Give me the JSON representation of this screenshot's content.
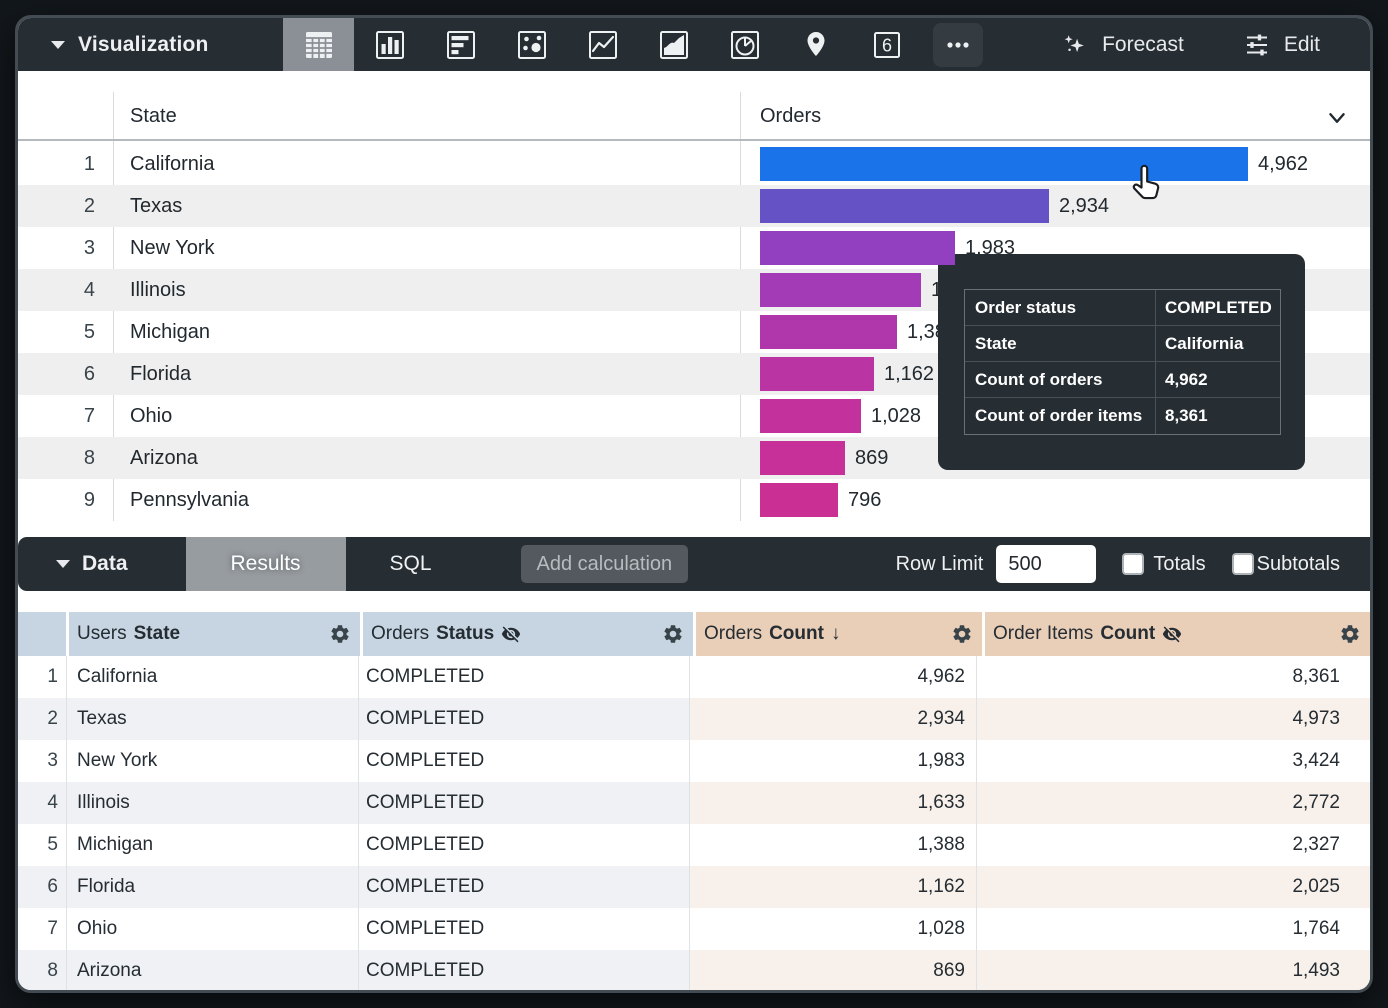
{
  "toolbar": {
    "title": "Visualization",
    "icons": [
      "table",
      "column-chart",
      "bar-chart",
      "scatter",
      "line-chart",
      "area-chart",
      "pie-chart",
      "map-pin",
      "single-value",
      "more"
    ],
    "selected_icon": "table",
    "single_value_glyph": "6",
    "forecast_label": "Forecast",
    "edit_label": "Edit"
  },
  "viz": {
    "state_header": "State",
    "orders_header": "Orders",
    "max_value": 4962,
    "rows": [
      {
        "n": "1",
        "state": "California",
        "value": 4962,
        "label": "4,962",
        "color": "#1a73e8"
      },
      {
        "n": "2",
        "state": "Texas",
        "value": 2934,
        "label": "2,934",
        "color": "#6553c6"
      },
      {
        "n": "3",
        "state": "New York",
        "value": 1983,
        "label": "1,983",
        "color": "#9240bf"
      },
      {
        "n": "4",
        "state": "Illinois",
        "value": 1633,
        "label": "1,633",
        "color": "#a43bb6"
      },
      {
        "n": "5",
        "state": "Michigan",
        "value": 1388,
        "label": "1,388",
        "color": "#b037ab"
      },
      {
        "n": "6",
        "state": "Florida",
        "value": 1162,
        "label": "1,162",
        "color": "#ba34a4"
      },
      {
        "n": "7",
        "state": "Ohio",
        "value": 1028,
        "label": "1,028",
        "color": "#c2319c"
      },
      {
        "n": "8",
        "state": "Arizona",
        "value": 869,
        "label": "869",
        "color": "#c63098"
      },
      {
        "n": "9",
        "state": "Pennsylvania",
        "value": 796,
        "label": "796",
        "color": "#ca2f93"
      }
    ]
  },
  "tooltip": {
    "rows": [
      {
        "label": "Order status",
        "value": "COMPLETED"
      },
      {
        "label": "State",
        "value": "California"
      },
      {
        "label": "Count of orders",
        "value": "4,962"
      },
      {
        "label": "Count of order items",
        "value": "8,361"
      }
    ]
  },
  "data_bar": {
    "title": "Data",
    "results_tab": "Results",
    "sql_tab": "SQL",
    "add_calculation_label": "Add calculation",
    "row_limit_label": "Row Limit",
    "row_limit_value": "500",
    "totals_label": "Totals",
    "subtotals_label": "Subtotals",
    "totals_checked": false,
    "subtotals_checked": false
  },
  "data_table": {
    "headers": [
      {
        "prefix": "Users",
        "bold": "State"
      },
      {
        "prefix": "Orders",
        "bold": "Status",
        "hidden": true
      },
      {
        "prefix": "Orders",
        "bold": "Count",
        "sort_indicator": "↓"
      },
      {
        "prefix": "Order Items",
        "bold": "Count",
        "hidden": true
      }
    ],
    "rows": [
      {
        "n": "1",
        "state": "California",
        "status": "COMPLETED",
        "orders": "4,962",
        "items": "8,361"
      },
      {
        "n": "2",
        "state": "Texas",
        "status": "COMPLETED",
        "orders": "2,934",
        "items": "4,973"
      },
      {
        "n": "3",
        "state": "New York",
        "status": "COMPLETED",
        "orders": "1,983",
        "items": "3,424"
      },
      {
        "n": "4",
        "state": "Illinois",
        "status": "COMPLETED",
        "orders": "1,633",
        "items": "2,772"
      },
      {
        "n": "5",
        "state": "Michigan",
        "status": "COMPLETED",
        "orders": "1,388",
        "items": "2,327"
      },
      {
        "n": "6",
        "state": "Florida",
        "status": "COMPLETED",
        "orders": "1,162",
        "items": "2,025"
      },
      {
        "n": "7",
        "state": "Ohio",
        "status": "COMPLETED",
        "orders": "1,028",
        "items": "1,764"
      },
      {
        "n": "8",
        "state": "Arizona",
        "status": "COMPLETED",
        "orders": "869",
        "items": "1,493"
      }
    ]
  },
  "colors": {
    "toolbar_bg": "#262d33",
    "selected_icon_bg": "#8a9096",
    "dimension_header_bg": "#c6d5e1",
    "measure_header_bg": "#e9ceb8",
    "highlight_bar": "#1a73e8"
  }
}
